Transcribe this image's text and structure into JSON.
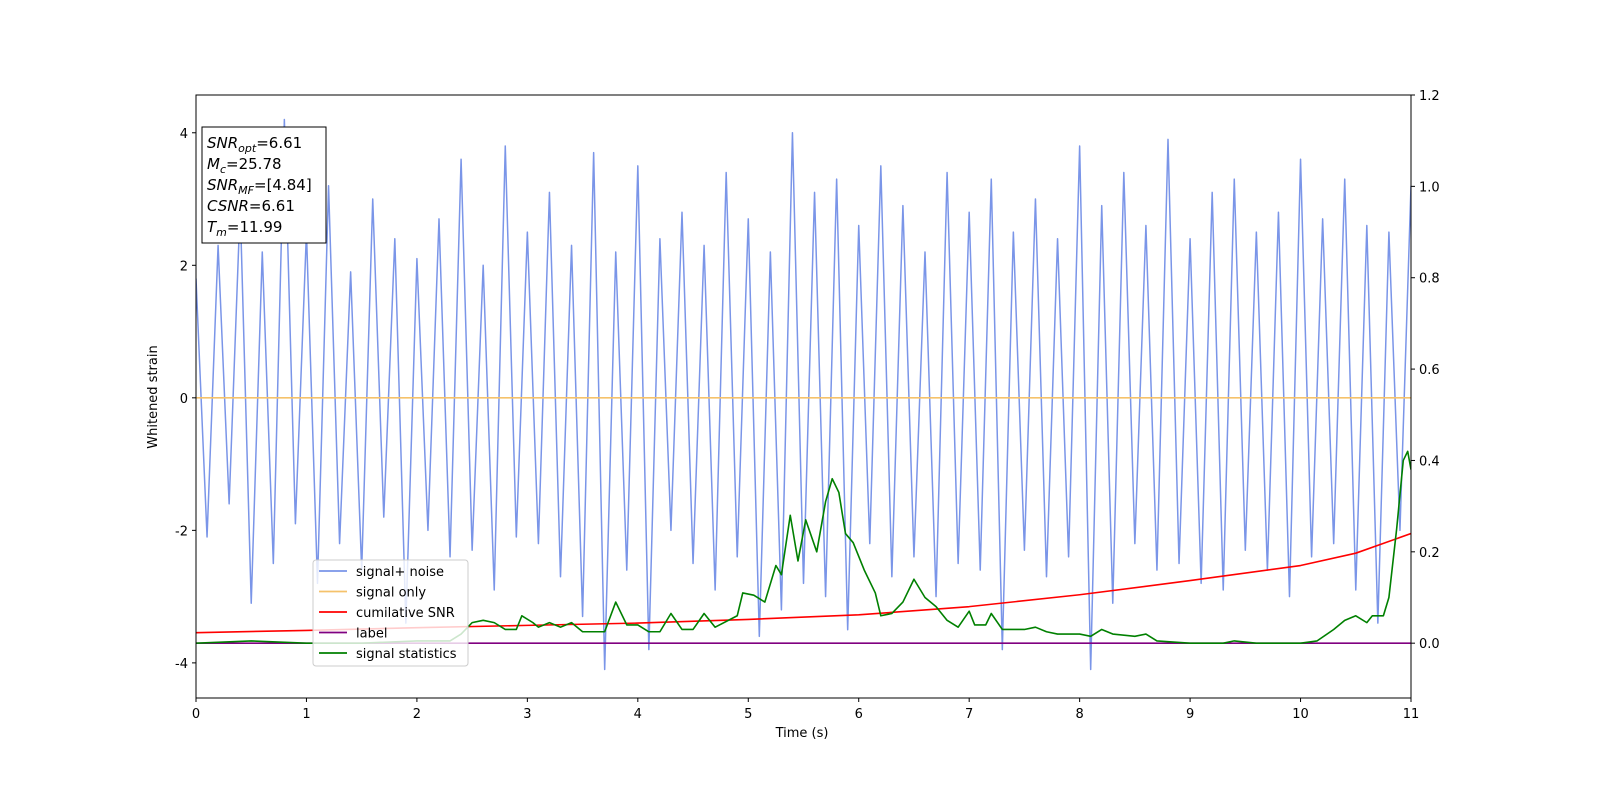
{
  "chart_data": {
    "type": "line",
    "xlabel": "Time (s)",
    "ylabel": "Whitened strain",
    "xlim": [
      0,
      11
    ],
    "xticks": [
      0,
      1,
      2,
      3,
      4,
      5,
      6,
      7,
      8,
      9,
      10,
      11
    ],
    "ylim": [
      -4.53,
      4.57
    ],
    "yticks": [
      -4,
      -2,
      0,
      2,
      4
    ],
    "y2lim": [
      -0.12,
      1.2
    ],
    "y2ticks": [
      {
        "value": 0,
        "label": "0.0"
      },
      {
        "value": 0.2,
        "label": "0.2"
      },
      {
        "value": 0.4,
        "label": "0.4"
      },
      {
        "value": 0.6,
        "label": "0.6"
      },
      {
        "value": 0.8,
        "label": "0.8"
      },
      {
        "value": 1.0,
        "label": "1.0"
      },
      {
        "value": 1.2,
        "label": "1.2"
      }
    ],
    "stats_box": [
      {
        "name": "SNR",
        "sub": "opt",
        "text": "=6.61"
      },
      {
        "name": "M",
        "sub": "c",
        "text": "=25.78"
      },
      {
        "name": "SNR",
        "sub": "MF",
        "text": "=[4.84]"
      },
      {
        "name": "CSNR",
        "text": "=6.61"
      },
      {
        "name": "T",
        "sub": "m",
        "text": "=11.99"
      }
    ],
    "series": [
      {
        "name": "signal+ noise",
        "color": "#7a95e8",
        "x": [
          0,
          0.1,
          0.2,
          0.3,
          0.4,
          0.5,
          0.6,
          0.7,
          0.8,
          0.9,
          1,
          1.1,
          1.2,
          1.3,
          1.4,
          1.5,
          1.6,
          1.7,
          1.8,
          1.9,
          2,
          2.1,
          2.2,
          2.3,
          2.4,
          2.5,
          2.6,
          2.7,
          2.8,
          2.9,
          3,
          3.1,
          3.2,
          3.3,
          3.4,
          3.5,
          3.6,
          3.7,
          3.8,
          3.9,
          4,
          4.1,
          4.2,
          4.3,
          4.4,
          4.5,
          4.6,
          4.7,
          4.8,
          4.9,
          5,
          5.1,
          5.2,
          5.3,
          5.4,
          5.5,
          5.6,
          5.7,
          5.8,
          5.9,
          6,
          6.1,
          6.2,
          6.3,
          6.4,
          6.5,
          6.6,
          6.7,
          6.8,
          6.9,
          7,
          7.1,
          7.2,
          7.3,
          7.4,
          7.5,
          7.6,
          7.7,
          7.8,
          7.9,
          8,
          8.1,
          8.2,
          8.3,
          8.4,
          8.5,
          8.6,
          8.7,
          8.8,
          8.9,
          9,
          9.1,
          9.2,
          9.3,
          9.4,
          9.5,
          9.6,
          9.7,
          9.8,
          9.9,
          10,
          10.1,
          10.2,
          10.3,
          10.4,
          10.5,
          10.6,
          10.7,
          10.8,
          10.9,
          11
        ],
        "values": [
          1.8,
          -2.1,
          2.3,
          -1.6,
          2.9,
          -3.1,
          2.2,
          -2.5,
          4.2,
          -1.9,
          2.5,
          -2.8,
          3.2,
          -2.2,
          1.9,
          -2.6,
          3.0,
          -1.8,
          2.4,
          -3.4,
          2.1,
          -2.0,
          2.7,
          -2.4,
          3.6,
          -2.3,
          2.0,
          -2.9,
          3.8,
          -2.1,
          2.5,
          -2.2,
          3.1,
          -2.7,
          2.3,
          -3.3,
          3.7,
          -4.1,
          2.2,
          -2.6,
          3.5,
          -3.8,
          2.4,
          -2.0,
          2.8,
          -2.5,
          2.3,
          -2.9,
          3.4,
          -2.4,
          2.7,
          -3.6,
          2.2,
          -3.2,
          4.0,
          -2.8,
          3.1,
          -3.0,
          3.3,
          -3.5,
          2.6,
          -2.2,
          3.5,
          -2.7,
          2.9,
          -2.4,
          2.2,
          -3.0,
          3.4,
          -2.5,
          2.8,
          -2.6,
          3.3,
          -3.8,
          2.5,
          -2.3,
          3.0,
          -2.7,
          2.4,
          -2.4,
          3.8,
          -4.1,
          2.9,
          -3.1,
          3.4,
          -2.2,
          2.6,
          -2.6,
          3.9,
          -2.5,
          2.4,
          -2.8,
          3.1,
          -2.9,
          3.3,
          -2.3,
          2.5,
          -2.6,
          2.8,
          -3.0,
          3.6,
          -2.4,
          2.7,
          -2.2,
          3.3,
          -2.9,
          2.6,
          -3.4,
          2.5,
          -2.0,
          3.2
        ]
      },
      {
        "name": "signal only",
        "color": "#f5c26b",
        "x": [
          0,
          11
        ],
        "values": [
          0,
          0
        ]
      },
      {
        "name": "cumilative SNR",
        "color": "#ff0000",
        "axis": "y2",
        "x": [
          0,
          1,
          2,
          3,
          4,
          5,
          6,
          7,
          8,
          9,
          10,
          10.5,
          11
        ],
        "values": [
          0.023,
          0.028,
          0.034,
          0.039,
          0.044,
          0.052,
          0.062,
          0.08,
          0.106,
          0.137,
          0.17,
          0.197,
          0.24
        ]
      },
      {
        "name": "label",
        "color": "#800080",
        "axis": "y2",
        "x": [
          0,
          11
        ],
        "values": [
          0,
          0
        ]
      },
      {
        "name": "signal statistics",
        "color": "#008000",
        "axis": "y2",
        "x": [
          0,
          0.5,
          1.0,
          1.5,
          2.0,
          2.3,
          2.4,
          2.5,
          2.6,
          2.7,
          2.8,
          2.9,
          2.95,
          3.05,
          3.1,
          3.2,
          3.3,
          3.4,
          3.5,
          3.7,
          3.8,
          3.9,
          4.0,
          4.1,
          4.2,
          4.3,
          4.4,
          4.5,
          4.6,
          4.7,
          4.9,
          4.95,
          5.05,
          5.15,
          5.25,
          5.3,
          5.38,
          5.45,
          5.52,
          5.62,
          5.7,
          5.76,
          5.82,
          5.88,
          5.95,
          6.05,
          6.15,
          6.2,
          6.3,
          6.4,
          6.5,
          6.6,
          6.7,
          6.8,
          6.9,
          7.0,
          7.05,
          7.15,
          7.2,
          7.3,
          7.5,
          7.6,
          7.7,
          7.8,
          8.0,
          8.1,
          8.2,
          8.3,
          8.5,
          8.6,
          8.7,
          9.0,
          9.3,
          9.4,
          9.6,
          10.0,
          10.15,
          10.3,
          10.4,
          10.5,
          10.6,
          10.65,
          10.75,
          10.8,
          10.87,
          10.93,
          10.97,
          11.0
        ],
        "values": [
          0.0,
          0.005,
          0.0,
          0.0,
          0.005,
          0.005,
          0.02,
          0.045,
          0.05,
          0.045,
          0.03,
          0.03,
          0.06,
          0.045,
          0.035,
          0.045,
          0.035,
          0.045,
          0.025,
          0.025,
          0.09,
          0.04,
          0.04,
          0.025,
          0.025,
          0.065,
          0.03,
          0.03,
          0.065,
          0.035,
          0.06,
          0.11,
          0.105,
          0.09,
          0.17,
          0.15,
          0.28,
          0.18,
          0.27,
          0.2,
          0.31,
          0.36,
          0.33,
          0.24,
          0.22,
          0.16,
          0.11,
          0.06,
          0.065,
          0.09,
          0.14,
          0.1,
          0.08,
          0.05,
          0.035,
          0.07,
          0.04,
          0.04,
          0.065,
          0.03,
          0.03,
          0.035,
          0.025,
          0.02,
          0.02,
          0.015,
          0.03,
          0.02,
          0.015,
          0.02,
          0.005,
          0.0,
          0.0,
          0.005,
          0.0,
          0.0,
          0.005,
          0.03,
          0.05,
          0.06,
          0.045,
          0.06,
          0.06,
          0.1,
          0.25,
          0.4,
          0.42,
          0.38
        ]
      }
    ]
  }
}
